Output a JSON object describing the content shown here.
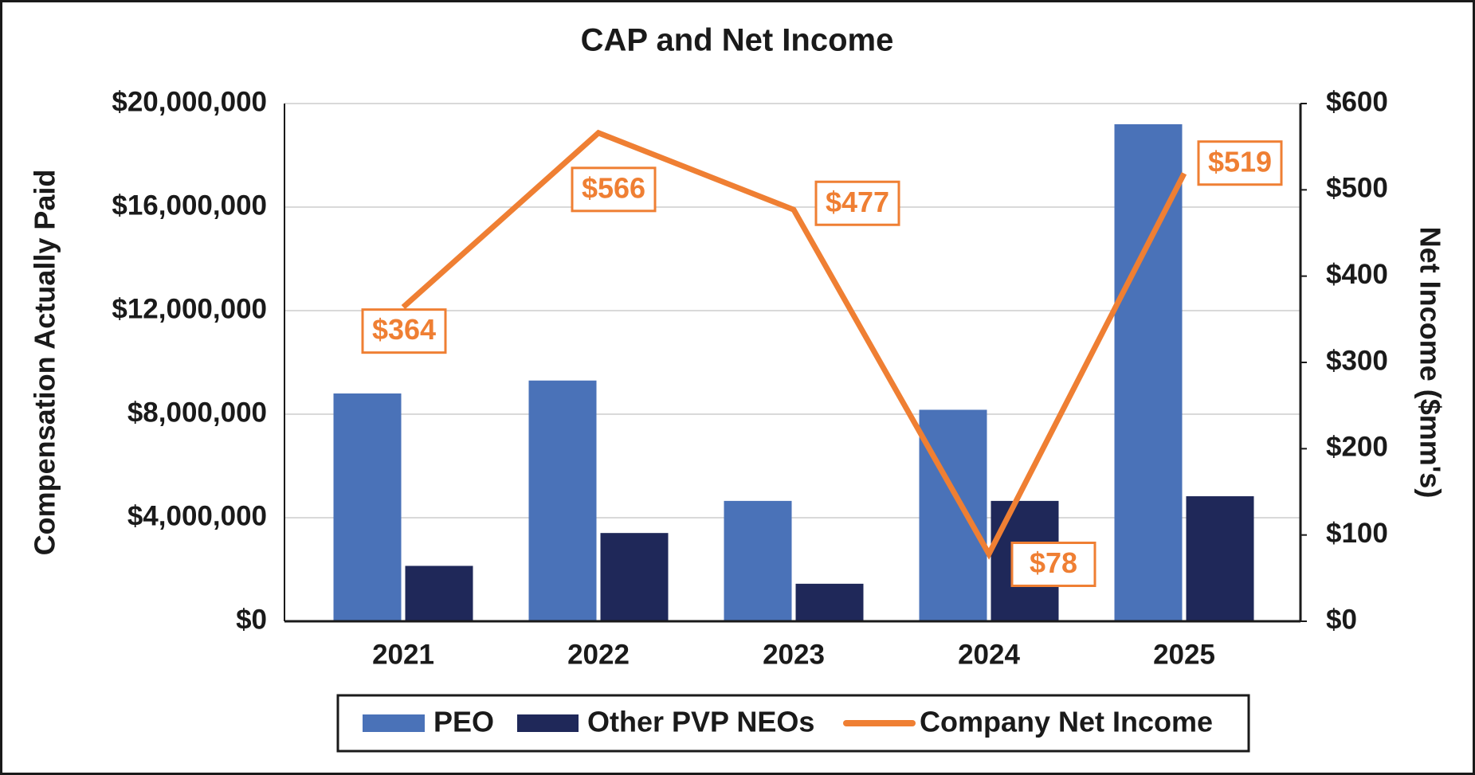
{
  "chart_data": {
    "type": "bar-line",
    "title": "CAP and Net Income",
    "y_label": "Compensation Actually Paid",
    "y2_label": "Net Income ($mm's)",
    "categories": [
      "2021",
      "2022",
      "2023",
      "2024",
      "2025"
    ],
    "series": [
      {
        "name": "PEO",
        "type": "bar",
        "color": "#4a72b8",
        "values": [
          8800000,
          9300000,
          4650000,
          8170000,
          19200000
        ]
      },
      {
        "name": "Other PVP NEOs",
        "type": "bar",
        "color": "#1f2859",
        "values": [
          2140000,
          3410000,
          1450000,
          4650000,
          4830000
        ]
      },
      {
        "name": "Company Net Income",
        "type": "line",
        "axis": "y2",
        "color": "#ef7f33",
        "values": [
          364,
          566,
          477,
          78,
          519
        ],
        "value_labels": [
          "$364",
          "$566",
          "$477",
          "$78",
          "$519"
        ]
      }
    ],
    "ylim": [
      0,
      20000000
    ],
    "yticks": [
      {
        "value": 0,
        "label": "$0"
      },
      {
        "value": 4000000,
        "label": "$4,000,000"
      },
      {
        "value": 8000000,
        "label": "$8,000,000"
      },
      {
        "value": 12000000,
        "label": "$12,000,000"
      },
      {
        "value": 16000000,
        "label": "$16,000,000"
      },
      {
        "value": 20000000,
        "label": "$20,000,000"
      }
    ],
    "y2lim": [
      0,
      600
    ],
    "y2ticks": [
      {
        "value": 0,
        "label": "$0"
      },
      {
        "value": 100,
        "label": "$100"
      },
      {
        "value": 200,
        "label": "$200"
      },
      {
        "value": 300,
        "label": "$300"
      },
      {
        "value": 400,
        "label": "$400"
      },
      {
        "value": 500,
        "label": "$500"
      },
      {
        "value": 600,
        "label": "$600"
      }
    ],
    "grid": true,
    "legend": "bottom"
  }
}
